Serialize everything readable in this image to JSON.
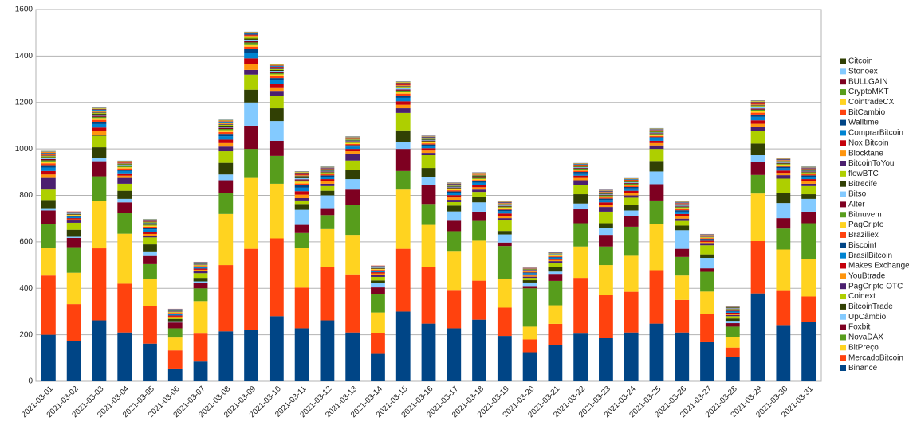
{
  "chart_data": {
    "type": "stacked_bar",
    "categories": [
      "2021-03-01",
      "2021-03-02",
      "2021-03-03",
      "2021-03-04",
      "2021-03-05",
      "2021-03-06",
      "2021-03-07",
      "2021-03-08",
      "2021-03-09",
      "2021-03-10",
      "2021-03-11",
      "2021-03-12",
      "2021-03-13",
      "2021-03-14",
      "2021-03-15",
      "2021-03-16",
      "2021-03-17",
      "2021-03-18",
      "2021-03-19",
      "2021-03-20",
      "2021-03-21",
      "2021-03-22",
      "2021-03-23",
      "2021-03-24",
      "2021-03-25",
      "2021-03-26",
      "2021-03-27",
      "2021-03-28",
      "2021-03-29",
      "2021-03-30",
      "2021-03-31"
    ],
    "ylim": [
      0,
      1600
    ],
    "yticks": [
      0,
      200,
      400,
      600,
      800,
      1000,
      1200,
      1400,
      1600
    ],
    "grid": true,
    "legend": "right",
    "series": [
      {
        "name": "Binance",
        "color": "#004586",
        "values": [
          200,
          172,
          262,
          210,
          162,
          55,
          85,
          215,
          220,
          280,
          228,
          262,
          210,
          118,
          300,
          248,
          228,
          265,
          195,
          125,
          155,
          205,
          185,
          210,
          248,
          210,
          168,
          103,
          378,
          242,
          255
        ]
      },
      {
        "name": "MercadoBitcoin",
        "color": "#ff420e",
        "values": [
          255,
          160,
          310,
          210,
          162,
          78,
          120,
          285,
          350,
          335,
          175,
          228,
          250,
          88,
          270,
          245,
          165,
          168,
          122,
          55,
          92,
          240,
          185,
          175,
          230,
          140,
          123,
          42,
          225,
          150,
          110
        ]
      },
      {
        "name": "BitPreço",
        "color": "#ffd320",
        "values": [
          120,
          135,
          205,
          215,
          118,
          55,
          140,
          220,
          305,
          235,
          170,
          165,
          170,
          90,
          255,
          180,
          168,
          172,
          125,
          55,
          80,
          135,
          130,
          155,
          200,
          105,
          95,
          45,
          205,
          175,
          160
        ]
      },
      {
        "name": "NovaDAX",
        "color": "#579d1c",
        "values": [
          100,
          110,
          105,
          90,
          62,
          40,
          55,
          90,
          125,
          120,
          65,
          60,
          130,
          78,
          80,
          90,
          85,
          85,
          140,
          165,
          105,
          100,
          80,
          125,
          100,
          80,
          85,
          45,
          80,
          90,
          155
        ]
      },
      {
        "name": "Foxbit",
        "color": "#7e0021",
        "values": [
          60,
          40,
          65,
          45,
          35,
          25,
          25,
          55,
          100,
          65,
          35,
          30,
          65,
          30,
          95,
          80,
          45,
          40,
          15,
          10,
          30,
          60,
          50,
          45,
          70,
          35,
          15,
          15,
          55,
          45,
          50
        ]
      },
      {
        "name": "UpCâmbio",
        "color": "#83caff",
        "values": [
          10,
          5,
          15,
          15,
          20,
          5,
          5,
          25,
          100,
          85,
          65,
          55,
          45,
          20,
          30,
          35,
          40,
          40,
          35,
          15,
          10,
          25,
          30,
          25,
          55,
          80,
          45,
          10,
          30,
          65,
          55
        ]
      },
      {
        "name": "BitcoinTrade",
        "color": "#314004",
        "values": [
          35,
          30,
          45,
          35,
          30,
          10,
          15,
          50,
          55,
          55,
          25,
          20,
          40,
          10,
          50,
          40,
          25,
          25,
          15,
          10,
          20,
          40,
          20,
          25,
          45,
          20,
          15,
          10,
          50,
          45,
          20
        ]
      },
      {
        "name": "Coinext",
        "color": "#aecf00",
        "values": [
          45,
          30,
          50,
          30,
          30,
          5,
          20,
          50,
          65,
          55,
          15,
          20,
          40,
          15,
          75,
          55,
          15,
          20,
          45,
          10,
          15,
          40,
          50,
          30,
          52,
          20,
          39,
          10,
          55,
          60,
          35
        ]
      },
      {
        "name": "PagCripto OTC",
        "color": "#4b1f6f",
        "values": [
          50,
          10,
          5,
          25,
          5,
          0,
          10,
          20,
          20,
          20,
          10,
          10,
          30,
          10,
          20,
          10,
          10,
          10,
          10,
          5,
          10,
          20,
          20,
          10,
          15,
          10,
          10,
          5,
          15,
          15,
          10
        ]
      },
      {
        "name": "YouBtrade",
        "color": "#ff950e",
        "values": [
          15,
          5,
          15,
          10,
          10,
          5,
          5,
          15,
          25,
          15,
          15,
          10,
          10,
          5,
          15,
          10,
          10,
          10,
          10,
          5,
          5,
          10,
          10,
          10,
          10,
          10,
          5,
          5,
          15,
          10,
          10
        ]
      },
      {
        "name": "Makes Exchange",
        "color": "#c5000b",
        "values": [
          15,
          5,
          15,
          10,
          10,
          5,
          5,
          15,
          25,
          15,
          15,
          10,
          10,
          5,
          15,
          10,
          10,
          10,
          10,
          5,
          5,
          10,
          10,
          10,
          10,
          10,
          5,
          5,
          15,
          10,
          10
        ]
      },
      {
        "name": "BrasilBitcoin",
        "color": "#0084d1",
        "values": [
          15,
          5,
          15,
          10,
          10,
          5,
          5,
          15,
          25,
          15,
          15,
          10,
          10,
          5,
          15,
          10,
          10,
          10,
          10,
          5,
          5,
          10,
          10,
          10,
          10,
          10,
          5,
          5,
          15,
          10,
          10
        ]
      },
      {
        "name": "Biscoint",
        "color": "#004586",
        "values": [
          10,
          3,
          10,
          6,
          6,
          3,
          3,
          10,
          15,
          10,
          10,
          6,
          6,
          3,
          10,
          6,
          6,
          6,
          6,
          3,
          3,
          6,
          6,
          6,
          6,
          6,
          3,
          3,
          10,
          6,
          6
        ]
      },
      {
        "name": "Braziliex",
        "color": "#ff420e",
        "values": [
          8,
          3,
          8,
          5,
          5,
          3,
          3,
          8,
          10,
          8,
          8,
          5,
          5,
          3,
          8,
          5,
          5,
          5,
          5,
          3,
          3,
          5,
          5,
          5,
          5,
          5,
          3,
          3,
          8,
          5,
          5
        ]
      },
      {
        "name": "PagCripto",
        "color": "#ffd320",
        "values": [
          8,
          3,
          8,
          5,
          5,
          3,
          3,
          8,
          10,
          8,
          8,
          5,
          5,
          3,
          8,
          5,
          5,
          5,
          5,
          3,
          3,
          5,
          5,
          5,
          5,
          5,
          3,
          3,
          8,
          5,
          5
        ]
      },
      {
        "name": "Bitnuvem",
        "color": "#579d1c",
        "values": [
          5,
          2,
          5,
          4,
          4,
          2,
          2,
          5,
          8,
          5,
          5,
          4,
          4,
          2,
          5,
          4,
          4,
          4,
          4,
          2,
          2,
          4,
          4,
          4,
          4,
          4,
          2,
          2,
          5,
          4,
          4
        ]
      },
      {
        "name": "Alter",
        "color": "#7e0021",
        "values": [
          5,
          2,
          5,
          3,
          3,
          2,
          2,
          5,
          6,
          5,
          5,
          3,
          3,
          2,
          5,
          3,
          3,
          3,
          3,
          2,
          2,
          3,
          3,
          3,
          3,
          3,
          2,
          2,
          5,
          3,
          3
        ]
      },
      {
        "name": "Bitso",
        "color": "#83caff",
        "values": [
          5,
          2,
          5,
          3,
          3,
          2,
          2,
          5,
          6,
          5,
          5,
          3,
          3,
          2,
          5,
          3,
          3,
          3,
          3,
          2,
          2,
          3,
          3,
          3,
          3,
          3,
          2,
          2,
          5,
          3,
          3
        ]
      },
      {
        "name": "Bitrecife",
        "color": "#314004",
        "values": [
          4,
          2,
          4,
          3,
          3,
          2,
          2,
          4,
          5,
          4,
          4,
          3,
          3,
          2,
          4,
          3,
          3,
          3,
          3,
          2,
          2,
          3,
          3,
          3,
          3,
          3,
          2,
          2,
          4,
          3,
          3
        ]
      },
      {
        "name": "flowBTC",
        "color": "#aecf00",
        "values": [
          4,
          1,
          4,
          2,
          2,
          1,
          1,
          4,
          5,
          4,
          4,
          2,
          2,
          1,
          4,
          2,
          2,
          2,
          2,
          1,
          1,
          2,
          2,
          2,
          2,
          2,
          1,
          1,
          4,
          2,
          2
        ]
      },
      {
        "name": "BitcoinToYou",
        "color": "#4b1f6f",
        "values": [
          3,
          1,
          3,
          2,
          2,
          1,
          1,
          3,
          4,
          3,
          3,
          2,
          2,
          1,
          3,
          2,
          2,
          2,
          2,
          1,
          1,
          2,
          2,
          2,
          2,
          2,
          1,
          1,
          3,
          2,
          2
        ]
      },
      {
        "name": "Blocktane",
        "color": "#ff950e",
        "values": [
          3,
          1,
          3,
          2,
          2,
          1,
          1,
          3,
          4,
          3,
          3,
          2,
          2,
          1,
          3,
          2,
          2,
          2,
          2,
          1,
          1,
          2,
          2,
          2,
          2,
          2,
          1,
          1,
          3,
          2,
          2
        ]
      },
      {
        "name": "Nox Bitcoin",
        "color": "#c5000b",
        "values": [
          3,
          1,
          3,
          2,
          2,
          1,
          1,
          3,
          4,
          3,
          3,
          2,
          2,
          1,
          3,
          2,
          2,
          2,
          2,
          1,
          1,
          2,
          2,
          2,
          2,
          2,
          1,
          1,
          3,
          2,
          2
        ]
      },
      {
        "name": "ComprarBitcoin",
        "color": "#0084d1",
        "values": [
          3,
          1,
          3,
          2,
          2,
          1,
          1,
          3,
          3,
          3,
          3,
          2,
          2,
          1,
          3,
          2,
          2,
          2,
          2,
          1,
          1,
          2,
          2,
          2,
          2,
          2,
          1,
          1,
          3,
          2,
          2
        ]
      },
      {
        "name": "Walltime",
        "color": "#004586",
        "values": [
          2,
          1,
          2,
          1,
          1,
          1,
          1,
          2,
          3,
          2,
          2,
          1,
          1,
          1,
          2,
          1,
          1,
          1,
          1,
          1,
          1,
          1,
          1,
          1,
          1,
          1,
          1,
          1,
          2,
          1,
          1
        ]
      },
      {
        "name": "BitCambio",
        "color": "#ff420e",
        "values": [
          2,
          1,
          2,
          1,
          1,
          1,
          1,
          2,
          2,
          2,
          2,
          1,
          1,
          1,
          2,
          1,
          1,
          1,
          1,
          1,
          1,
          1,
          1,
          1,
          1,
          1,
          1,
          1,
          2,
          1,
          1
        ]
      },
      {
        "name": "CointradeCX",
        "color": "#ffd320",
        "values": [
          2,
          0,
          2,
          1,
          1,
          0,
          0,
          2,
          2,
          2,
          2,
          1,
          1,
          0,
          2,
          1,
          1,
          1,
          1,
          0,
          0,
          1,
          1,
          1,
          1,
          1,
          0,
          0,
          2,
          1,
          1
        ]
      },
      {
        "name": "CryptoMKT",
        "color": "#579d1c",
        "values": [
          1,
          0,
          1,
          1,
          1,
          0,
          0,
          1,
          1,
          1,
          1,
          1,
          1,
          0,
          1,
          1,
          1,
          1,
          1,
          0,
          0,
          1,
          1,
          1,
          1,
          1,
          0,
          0,
          1,
          1,
          1
        ]
      },
      {
        "name": "BULLGAIN",
        "color": "#7e0021",
        "values": [
          1,
          0,
          1,
          1,
          1,
          0,
          0,
          1,
          1,
          1,
          1,
          1,
          1,
          0,
          1,
          1,
          1,
          1,
          1,
          0,
          0,
          1,
          1,
          1,
          1,
          1,
          0,
          0,
          1,
          1,
          1
        ]
      },
      {
        "name": "Stonoex",
        "color": "#83caff",
        "values": [
          1,
          0,
          1,
          1,
          1,
          0,
          0,
          1,
          1,
          1,
          1,
          1,
          1,
          0,
          1,
          1,
          1,
          1,
          1,
          0,
          0,
          1,
          1,
          1,
          1,
          1,
          0,
          0,
          1,
          1,
          1
        ]
      },
      {
        "name": "Citcoin",
        "color": "#314004",
        "values": [
          1,
          0,
          1,
          0,
          0,
          0,
          0,
          1,
          0,
          1,
          1,
          0,
          0,
          0,
          1,
          0,
          0,
          0,
          0,
          0,
          0,
          0,
          0,
          0,
          0,
          0,
          0,
          0,
          1,
          0,
          0
        ]
      }
    ]
  }
}
